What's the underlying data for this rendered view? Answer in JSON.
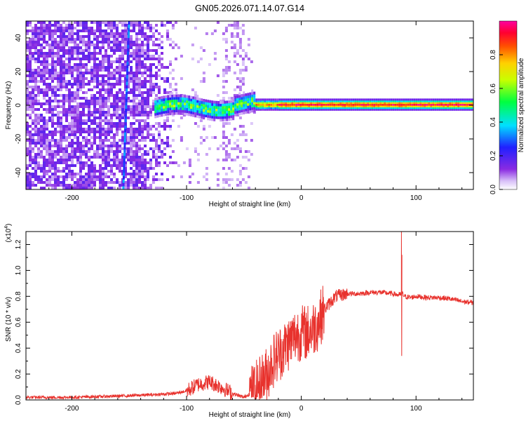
{
  "title": "GN05.2026.071.14.07.G14",
  "chart_data": [
    {
      "type": "heatmap",
      "xlabel": "Height of straight line (km)",
      "ylabel": "Frequency (Hz)",
      "xlim": [
        -240,
        150
      ],
      "ylim": [
        -50,
        50
      ],
      "x_ticks": [
        -200,
        -100,
        0,
        100
      ],
      "x_tick_labels": [
        "-200",
        "-100",
        "0",
        "100"
      ],
      "y_ticks": [
        -40,
        -20,
        0,
        20,
        40
      ],
      "y_tick_labels": [
        "-40",
        "-20",
        "0",
        "20",
        "40"
      ],
      "colorbar": {
        "label": "Normalized spectral amplitude",
        "range": [
          0,
          1
        ],
        "ticks": [
          0.0,
          0.2,
          0.4,
          0.6,
          0.8
        ],
        "tick_labels": [
          "0.0",
          "0.2",
          "0.4",
          "0.6",
          "0.8"
        ],
        "colormap": [
          "#ffffff",
          "#8a2be2",
          "#0000ff",
          "#00ffff",
          "#00ff00",
          "#ffff00",
          "#ff8000",
          "#ff0000",
          "#ff00ff"
        ]
      },
      "regions": [
        {
          "x_range": [
            -240,
            -115
          ],
          "freq_range": [
            -50,
            50
          ],
          "amplitude": 0.15,
          "description": "broadband noise"
        },
        {
          "x_range": [
            -125,
            -40
          ],
          "freq_center": [
            -2,
            2
          ],
          "amplitude": 0.5,
          "description": "onset of tone"
        },
        {
          "x_range": [
            -40,
            150
          ],
          "freq_center": 0,
          "amplitude": 0.95,
          "description": "carrier at 0 Hz"
        }
      ],
      "grid": false
    },
    {
      "type": "line",
      "xlabel": "Height of straight line (km)",
      "ylabel": "SNR (10 * v/v)",
      "y_multiplier": "(x10^4)",
      "xlim": [
        -240,
        150
      ],
      "ylim": [
        0,
        1.3
      ],
      "x_ticks": [
        -200,
        -100,
        0,
        100
      ],
      "x_tick_labels": [
        "-200",
        "-100",
        "0",
        "100"
      ],
      "y_ticks": [
        0.0,
        0.2,
        0.4,
        0.6,
        0.8,
        1.0,
        1.2
      ],
      "y_tick_labels": [
        "0.0",
        "0.2",
        "0.4",
        "0.6",
        "0.8",
        "1.0",
        "1.2"
      ],
      "color": "#e8322d",
      "series": [
        {
          "x": [
            -240,
            -200,
            -160,
            -130,
            -110,
            -100,
            -90,
            -80,
            -70,
            -60,
            -50,
            -40,
            -30,
            -25,
            -20,
            -15,
            -10,
            -5,
            0,
            5,
            10,
            15,
            20,
            25,
            30,
            40,
            50,
            60,
            70,
            80,
            85,
            88,
            90,
            95,
            100,
            110,
            120,
            130,
            140,
            150
          ],
          "y": [
            0.02,
            0.02,
            0.03,
            0.04,
            0.05,
            0.07,
            0.12,
            0.14,
            0.1,
            0.05,
            0.02,
            0.08,
            0.2,
            0.3,
            0.35,
            0.4,
            0.45,
            0.5,
            0.52,
            0.52,
            0.55,
            0.6,
            0.7,
            0.75,
            0.8,
            0.82,
            0.82,
            0.83,
            0.83,
            0.82,
            0.81,
            0.82,
            0.8,
            0.79,
            0.8,
            0.79,
            0.79,
            0.78,
            0.76,
            0.75
          ]
        }
      ],
      "annotations": [
        {
          "x": 87.5,
          "y": 1.3,
          "description": "spike"
        },
        {
          "x": 87.5,
          "y": 0.34,
          "description": "dip"
        }
      ],
      "grid": false
    }
  ]
}
